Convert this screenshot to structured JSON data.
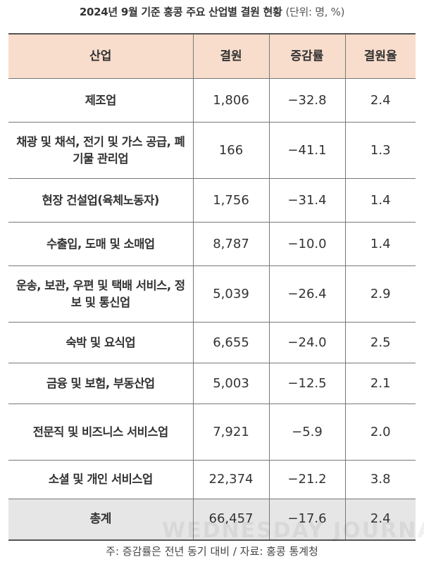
{
  "title": "2024년 9월 기준 홍콩 주요 산업별 결원 현황",
  "unit": "(단위: 명, %)",
  "headers": [
    "산업",
    "결원",
    "증감률",
    "결원율"
  ],
  "rows": [
    {
      "industry": "제조업",
      "vacancies": "1,806",
      "change": "−32.8",
      "rate": "2.4"
    },
    {
      "industry": "채광 및 채석, 전기 및 가스 공급, 폐기물 관리업",
      "vacancies": "166",
      "change": "−41.1",
      "rate": "1.3"
    },
    {
      "industry": "현장 건설업(육체노동자)",
      "vacancies": "1,756",
      "change": "−31.4",
      "rate": "1.4"
    },
    {
      "industry": "수출입, 도매 및 소매업",
      "vacancies": "8,787",
      "change": "−10.0",
      "rate": "1.4"
    },
    {
      "industry": "운송, 보관, 우편 및 택배 서비스, 정보 및 통신업",
      "vacancies": "5,039",
      "change": "−26.4",
      "rate": "2.9"
    },
    {
      "industry": "숙박 및 요식업",
      "vacancies": "6,655",
      "change": "−24.0",
      "rate": "2.5"
    },
    {
      "industry": "금융 및 보험, 부동산업",
      "vacancies": "5,003",
      "change": "−12.5",
      "rate": "2.1"
    },
    {
      "industry": "전문직 및 비즈니스 서비스업",
      "vacancies": "7,921",
      "change": "−5.9",
      "rate": "2.0"
    },
    {
      "industry": "소셜 및 개인 서비스업",
      "vacancies": "22,374",
      "change": "−21.2",
      "rate": "3.8"
    }
  ],
  "total": {
    "industry": "총계",
    "vacancies": "66,457",
    "change": "−17.6",
    "rate": "2.4"
  },
  "watermark": "WEDNESDAY JOURNAL",
  "note": "주: 증감률은 전년 동기 대비 / 자료: 홍콩 통계청",
  "colors": {
    "header_bg": "#f8ddcc",
    "total_bg": "#e6e6e6"
  }
}
